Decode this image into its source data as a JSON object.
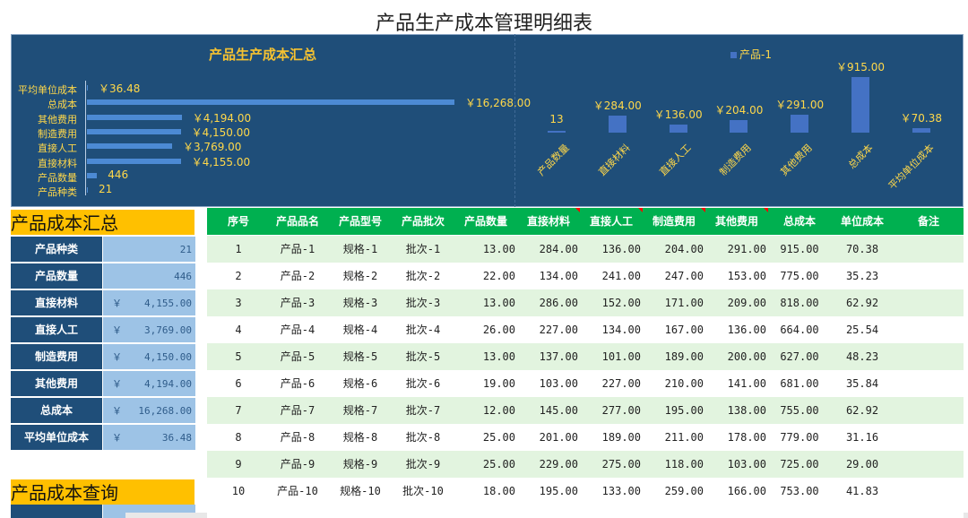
{
  "title": "产品生产成本管理明细表",
  "dashboard": {
    "left_title": "产品生产成本汇总",
    "hbars": [
      {
        "label": "平均单位成本",
        "value": 36.48,
        "text": "￥36.48"
      },
      {
        "label": "总成本",
        "value": 16268,
        "text": "￥16,268.00"
      },
      {
        "label": "其他费用",
        "value": 4194,
        "text": "￥4,194.00"
      },
      {
        "label": "制造费用",
        "value": 4150,
        "text": "￥4,150.00"
      },
      {
        "label": "直接人工",
        "value": 3769,
        "text": "￥3,769.00"
      },
      {
        "label": "直接材料",
        "value": 4155,
        "text": "￥4,155.00"
      },
      {
        "label": "产品数量",
        "value": 446,
        "text": "446"
      },
      {
        "label": "产品种类",
        "value": 21,
        "text": "21"
      }
    ],
    "right_legend": "产品-1",
    "vbars": [
      {
        "label": "产品数量",
        "value": 13,
        "text": "13"
      },
      {
        "label": "直接材料",
        "value": 284,
        "text": "￥284.00"
      },
      {
        "label": "直接人工",
        "value": 136,
        "text": "￥136.00"
      },
      {
        "label": "制造费用",
        "value": 204,
        "text": "￥204.00"
      },
      {
        "label": "其他费用",
        "value": 291,
        "text": "￥291.00"
      },
      {
        "label": "总成本",
        "value": 915,
        "text": "￥915.00"
      },
      {
        "label": "平均单位成本",
        "value": 70.38,
        "text": "￥70.38"
      }
    ]
  },
  "summary": {
    "heading": "产品成本汇总",
    "rows": [
      {
        "key": "产品种类",
        "currency": "",
        "value": "21"
      },
      {
        "key": "产品数量",
        "currency": "",
        "value": "446"
      },
      {
        "key": "直接材料",
        "currency": "￥",
        "value": "4,155.00"
      },
      {
        "key": "直接人工",
        "currency": "￥",
        "value": "3,769.00"
      },
      {
        "key": "制造费用",
        "currency": "￥",
        "value": "4,150.00"
      },
      {
        "key": "其他费用",
        "currency": "￥",
        "value": "4,194.00"
      },
      {
        "key": "总成本",
        "currency": "￥",
        "value": "16,268.00"
      },
      {
        "key": "平均单位成本",
        "currency": "￥",
        "value": "36.48"
      }
    ]
  },
  "query": {
    "heading": "产品成本查询"
  },
  "table": {
    "headers": [
      "序号",
      "产品品名",
      "产品型号",
      "产品批次",
      "产品数量",
      "直接材料",
      "直接人工",
      "制造费用",
      "其他费用",
      "总成本",
      "单位成本",
      "备注"
    ],
    "rows": [
      [
        "1",
        "产品-1",
        "规格-1",
        "批次-1",
        "13.00",
        "284.00",
        "136.00",
        "204.00",
        "291.00",
        "915.00",
        "70.38",
        ""
      ],
      [
        "2",
        "产品-2",
        "规格-2",
        "批次-2",
        "22.00",
        "134.00",
        "241.00",
        "247.00",
        "153.00",
        "775.00",
        "35.23",
        ""
      ],
      [
        "3",
        "产品-3",
        "规格-3",
        "批次-3",
        "13.00",
        "286.00",
        "152.00",
        "171.00",
        "209.00",
        "818.00",
        "62.92",
        ""
      ],
      [
        "4",
        "产品-4",
        "规格-4",
        "批次-4",
        "26.00",
        "227.00",
        "134.00",
        "167.00",
        "136.00",
        "664.00",
        "25.54",
        ""
      ],
      [
        "5",
        "产品-5",
        "规格-5",
        "批次-5",
        "13.00",
        "137.00",
        "101.00",
        "189.00",
        "200.00",
        "627.00",
        "48.23",
        ""
      ],
      [
        "6",
        "产品-6",
        "规格-6",
        "批次-6",
        "19.00",
        "103.00",
        "227.00",
        "210.00",
        "141.00",
        "681.00",
        "35.84",
        ""
      ],
      [
        "7",
        "产品-7",
        "规格-7",
        "批次-7",
        "12.00",
        "145.00",
        "277.00",
        "195.00",
        "138.00",
        "755.00",
        "62.92",
        ""
      ],
      [
        "8",
        "产品-8",
        "规格-8",
        "批次-8",
        "25.00",
        "201.00",
        "189.00",
        "211.00",
        "178.00",
        "779.00",
        "31.16",
        ""
      ],
      [
        "9",
        "产品-9",
        "规格-9",
        "批次-9",
        "25.00",
        "229.00",
        "275.00",
        "118.00",
        "103.00",
        "725.00",
        "29.00",
        ""
      ],
      [
        "10",
        "产品-10",
        "规格-10",
        "批次-10",
        "18.00",
        "195.00",
        "133.00",
        "259.00",
        "166.00",
        "753.00",
        "41.83",
        ""
      ]
    ]
  },
  "colors": {
    "dashboard_bg": "#1f4e79",
    "bar": "#4472c4",
    "label": "#ffd84a",
    "header_green": "#00b050",
    "stripe": "#e2f4df",
    "section_yellow": "#ffc000",
    "summary_value_bg": "#9dc3e6"
  }
}
